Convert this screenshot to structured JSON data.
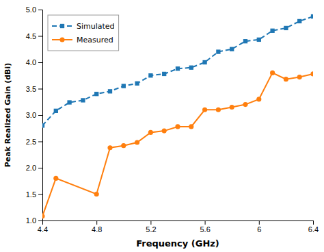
{
  "chart_data": {
    "type": "line",
    "xlabel": "Frequency (GHz)",
    "ylabel": "Peak Realized Gain (dBi)",
    "series": [
      {
        "name": "Simulated",
        "marker": "square",
        "line_style": "dashed",
        "x": [
          4.4,
          4.5,
          4.6,
          4.7,
          4.8,
          4.9,
          5.0,
          5.1,
          5.2,
          5.3,
          5.4,
          5.5,
          5.6,
          5.7,
          5.8,
          5.9,
          6.0,
          6.1,
          6.2,
          6.3,
          6.4
        ],
        "values": [
          2.8,
          3.08,
          3.24,
          3.28,
          3.4,
          3.45,
          3.55,
          3.6,
          3.75,
          3.78,
          3.88,
          3.9,
          4.0,
          4.2,
          4.25,
          4.4,
          4.43,
          4.6,
          4.65,
          4.78,
          4.87
        ]
      },
      {
        "name": "Measured",
        "marker": "circle",
        "line_style": "solid",
        "x": [
          4.4,
          4.5,
          4.8,
          4.9,
          5.0,
          5.1,
          5.2,
          5.3,
          5.4,
          5.5,
          5.6,
          5.7,
          5.8,
          5.9,
          6.0,
          6.1,
          6.2,
          6.3,
          6.4
        ],
        "values": [
          1.08,
          1.8,
          1.5,
          2.38,
          2.42,
          2.48,
          2.67,
          2.7,
          2.78,
          2.78,
          3.1,
          3.1,
          3.15,
          3.2,
          3.3,
          3.8,
          3.68,
          3.72,
          3.78
        ]
      }
    ],
    "xlim": [
      4.4,
      6.4
    ],
    "ylim": [
      1.0,
      5.0
    ],
    "xticks": [
      4.4,
      4.8,
      5.2,
      5.6,
      6.0,
      6.4
    ],
    "yticks": [
      {
        "value": 1.0,
        "label": "1.0"
      },
      1.5,
      {
        "value": 2.0,
        "label": "2.0"
      },
      2.5,
      {
        "value": 3.0,
        "label": "3.0"
      },
      3.5,
      {
        "value": 4.0,
        "label": "4.0"
      },
      4.5,
      {
        "value": 5.0,
        "label": "5.0"
      }
    ],
    "grid": false,
    "legend": "upper-left"
  }
}
